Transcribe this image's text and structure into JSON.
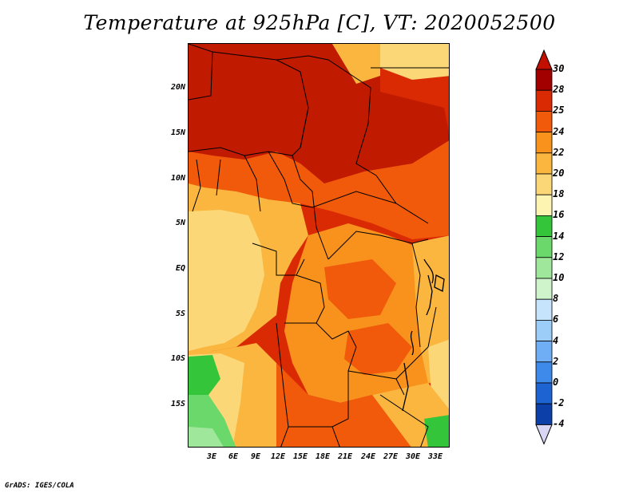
{
  "title": "Temperature at 925hPa [C], VT: 2020052500",
  "credit": "GrADS: IGES/COLA",
  "map": {
    "variable": "Temperature",
    "level": "925hPa",
    "units": "C",
    "valid_time": "2020052500",
    "lat_labels": [
      "20N",
      "15N",
      "10N",
      "5N",
      "EQ",
      "5S",
      "10S",
      "15S"
    ],
    "lon_labels": [
      "3E",
      "6E",
      "9E",
      "12E",
      "15E",
      "18E",
      "21E",
      "24E",
      "27E",
      "30E",
      "33E"
    ]
  },
  "colorbar": {
    "levels": [
      "30",
      "28",
      "25",
      "24",
      "22",
      "20",
      "18",
      "16",
      "14",
      "12",
      "10",
      "8",
      "6",
      "4",
      "2",
      "0",
      "-2",
      "-4"
    ],
    "colors": [
      "#a20000",
      "#d92a04",
      "#f05a0a",
      "#f8921c",
      "#fab63e",
      "#fcd777",
      "#fdf4b2",
      "#35c53a",
      "#6ad86a",
      "#9fe89b",
      "#cff4cc",
      "#c6e4fc",
      "#9ccdf9",
      "#6faef5",
      "#3d8aea",
      "#1e63d2",
      "#0c3fa8",
      "#06237a"
    ],
    "top_color": "#c30f00",
    "bottom_color": "#d9d6f5"
  }
}
